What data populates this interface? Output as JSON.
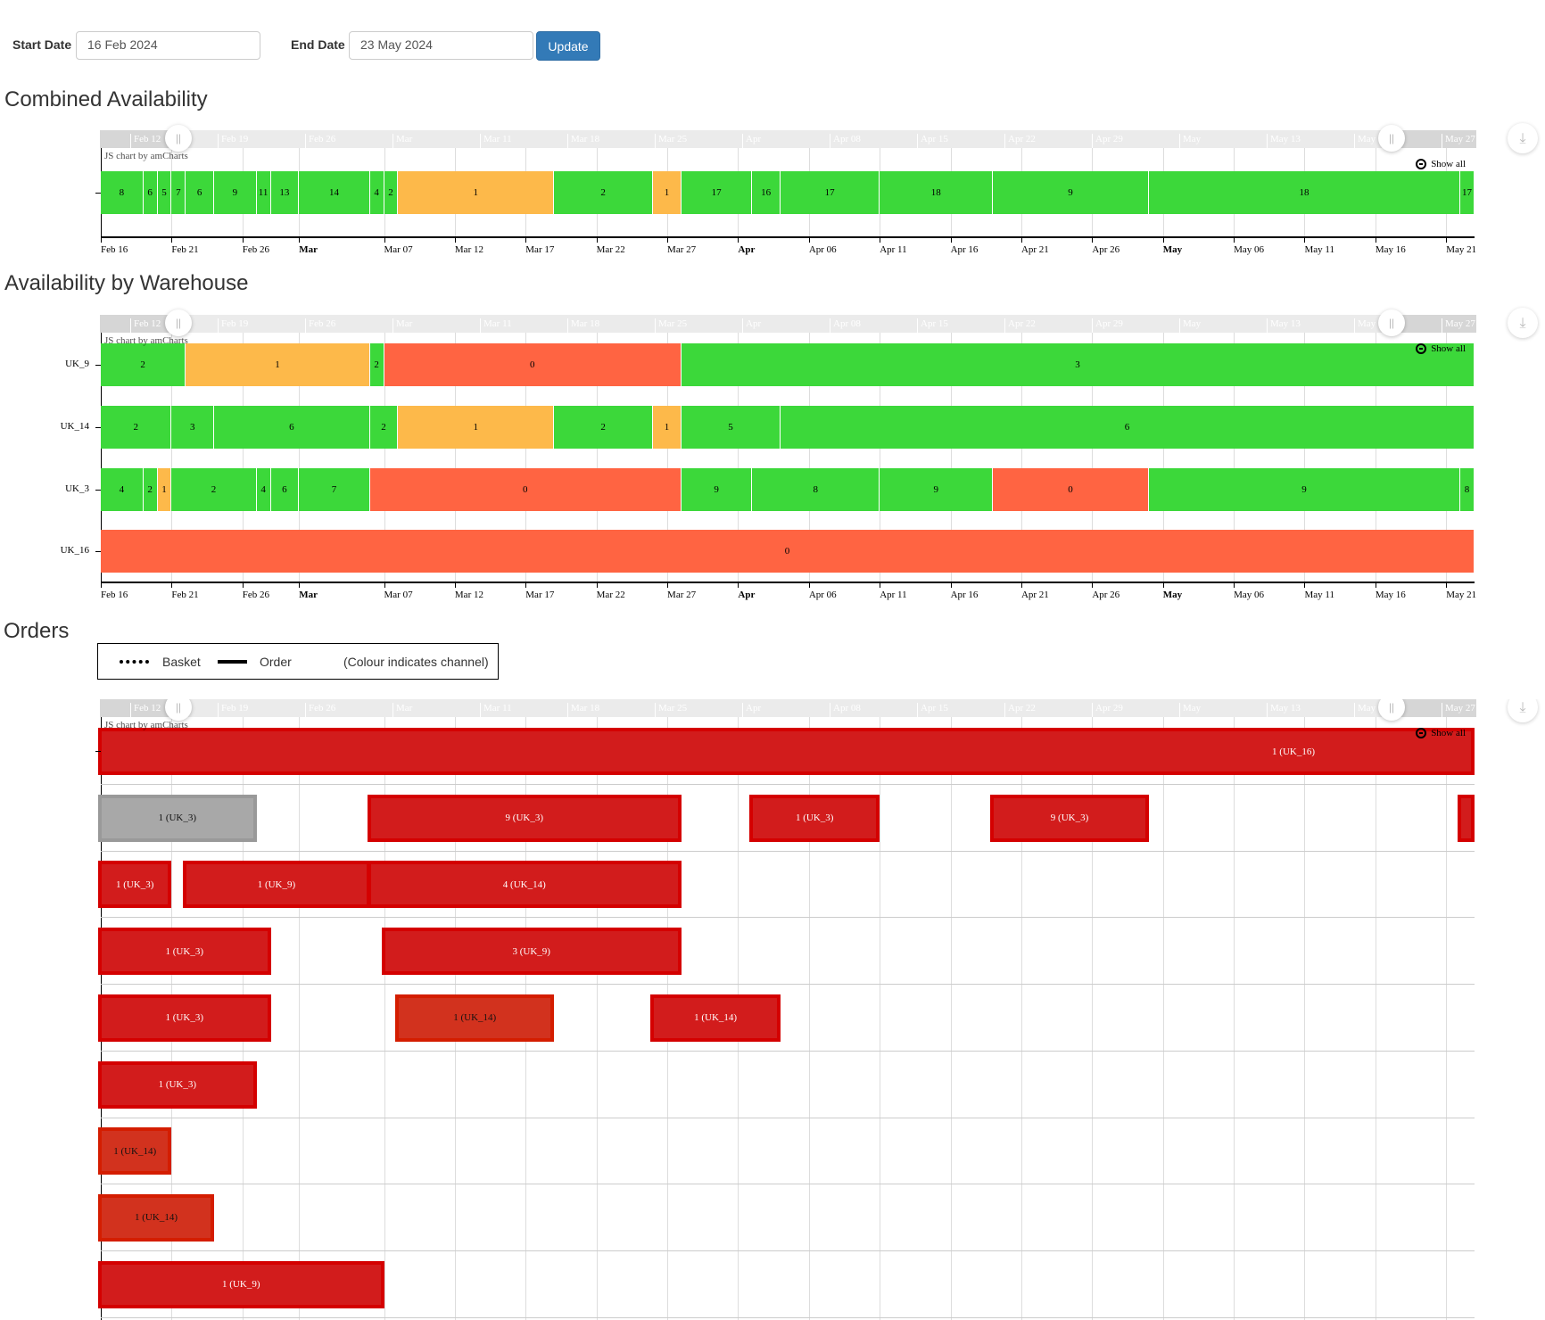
{
  "filters": {
    "start_label": "Start Date",
    "start_value": "16 Feb 2024",
    "end_label": "End Date",
    "end_value": "23 May 2024",
    "update_label": "Update"
  },
  "sections": {
    "combined": "Combined Availability",
    "warehouse": "Availability by Warehouse",
    "orders": "Orders"
  },
  "legend": {
    "basket": "Basket",
    "order": "Order",
    "note": "(Colour indicates channel)"
  },
  "chart_common": {
    "credit": "JS chart by amCharts",
    "show_all": "Show all",
    "download_icon": "download-icon",
    "zoom_out_icon": "zoom-out-icon"
  },
  "scrollbar_labels": [
    "Feb 12",
    "Feb 19",
    "Feb 26",
    "Mar",
    "Mar 11",
    "Mar 18",
    "Mar 25",
    "Apr",
    "Apr 08",
    "Apr 15",
    "Apr 22",
    "Apr 29",
    "May",
    "May 13",
    "May",
    "May 27"
  ],
  "time_axis": {
    "range": [
      "2024-02-16",
      "2024-05-23"
    ],
    "ticks": [
      {
        "date": "2024-02-16",
        "label": "Feb 16"
      },
      {
        "date": "2024-02-21",
        "label": "Feb 21"
      },
      {
        "date": "2024-02-26",
        "label": "Feb 26"
      },
      {
        "date": "2024-03-01",
        "label": "Mar",
        "bold": true
      },
      {
        "date": "2024-03-07",
        "label": "Mar 07"
      },
      {
        "date": "2024-03-12",
        "label": "Mar 12"
      },
      {
        "date": "2024-03-17",
        "label": "Mar 17"
      },
      {
        "date": "2024-03-22",
        "label": "Mar 22"
      },
      {
        "date": "2024-03-27",
        "label": "Mar 27"
      },
      {
        "date": "2024-04-01",
        "label": "Apr",
        "bold": true
      },
      {
        "date": "2024-04-06",
        "label": "Apr 06"
      },
      {
        "date": "2024-04-11",
        "label": "Apr 11"
      },
      {
        "date": "2024-04-16",
        "label": "Apr 16"
      },
      {
        "date": "2024-04-21",
        "label": "Apr 21"
      },
      {
        "date": "2024-04-26",
        "label": "Apr 26"
      },
      {
        "date": "2024-05-01",
        "label": "May",
        "bold": true
      },
      {
        "date": "2024-05-06",
        "label": "May 06"
      },
      {
        "date": "2024-05-11",
        "label": "May 11"
      },
      {
        "date": "2024-05-16",
        "label": "May 16"
      },
      {
        "date": "2024-05-21",
        "label": "May 21"
      }
    ]
  },
  "colors": {
    "high": "#3cd83a",
    "low": "#fdb94a",
    "zero": "#ff6442",
    "order": "#d21c1c",
    "order_uk14": "#d2321e",
    "basket": "#a8a8a8"
  },
  "chart_data": [
    {
      "type": "gantt",
      "title": "Combined Availability",
      "rows": [
        {
          "label": "",
          "segments": [
            [
              "2024-02-16",
              "2024-02-19",
              8
            ],
            [
              "2024-02-19",
              "2024-02-20",
              6
            ],
            [
              "2024-02-20",
              "2024-02-21",
              5
            ],
            [
              "2024-02-21",
              "2024-02-22",
              7
            ],
            [
              "2024-02-22",
              "2024-02-24",
              6
            ],
            [
              "2024-02-24",
              "2024-02-27",
              9
            ],
            [
              "2024-02-27",
              "2024-02-28",
              11
            ],
            [
              "2024-02-28",
              "2024-03-01",
              13
            ],
            [
              "2024-03-01",
              "2024-03-06",
              14
            ],
            [
              "2024-03-06",
              "2024-03-07",
              4
            ],
            [
              "2024-03-07",
              "2024-03-08",
              2
            ],
            [
              "2024-03-08",
              "2024-03-19",
              1
            ],
            [
              "2024-03-19",
              "2024-03-26",
              2
            ],
            [
              "2024-03-26",
              "2024-03-28",
              1
            ],
            [
              "2024-03-28",
              "2024-04-02",
              17
            ],
            [
              "2024-04-02",
              "2024-04-04",
              16
            ],
            [
              "2024-04-04",
              "2024-04-11",
              17
            ],
            [
              "2024-04-11",
              "2024-04-19",
              18
            ],
            [
              "2024-04-19",
              "2024-04-30",
              9
            ],
            [
              "2024-04-30",
              "2024-05-22",
              18
            ],
            [
              "2024-05-22",
              "2024-05-23",
              17
            ]
          ]
        }
      ]
    },
    {
      "type": "gantt",
      "title": "Availability by Warehouse",
      "rows": [
        {
          "label": "UK_9",
          "segments": [
            [
              "2024-02-16",
              "2024-02-22",
              2
            ],
            [
              "2024-02-22",
              "2024-03-06",
              1
            ],
            [
              "2024-03-06",
              "2024-03-07",
              2
            ],
            [
              "2024-03-07",
              "2024-03-28",
              0
            ],
            [
              "2024-03-28",
              "2024-05-23",
              3
            ]
          ]
        },
        {
          "label": "UK_14",
          "segments": [
            [
              "2024-02-16",
              "2024-02-21",
              2
            ],
            [
              "2024-02-21",
              "2024-02-24",
              3
            ],
            [
              "2024-02-24",
              "2024-03-06",
              6
            ],
            [
              "2024-03-06",
              "2024-03-08",
              2
            ],
            [
              "2024-03-08",
              "2024-03-19",
              1
            ],
            [
              "2024-03-19",
              "2024-03-26",
              2
            ],
            [
              "2024-03-26",
              "2024-03-28",
              1
            ],
            [
              "2024-03-28",
              "2024-04-04",
              5
            ],
            [
              "2024-04-04",
              "2024-05-23",
              6
            ]
          ]
        },
        {
          "label": "UK_3",
          "segments": [
            [
              "2024-02-16",
              "2024-02-19",
              4
            ],
            [
              "2024-02-19",
              "2024-02-20",
              2
            ],
            [
              "2024-02-20",
              "2024-02-21",
              1
            ],
            [
              "2024-02-21",
              "2024-02-27",
              2
            ],
            [
              "2024-02-27",
              "2024-02-28",
              4
            ],
            [
              "2024-02-28",
              "2024-03-01",
              6
            ],
            [
              "2024-03-01",
              "2024-03-06",
              7
            ],
            [
              "2024-03-06",
              "2024-03-28",
              0
            ],
            [
              "2024-03-28",
              "2024-04-02",
              9
            ],
            [
              "2024-04-02",
              "2024-04-11",
              8
            ],
            [
              "2024-04-11",
              "2024-04-19",
              9
            ],
            [
              "2024-04-19",
              "2024-04-30",
              0
            ],
            [
              "2024-04-30",
              "2024-05-22",
              9
            ],
            [
              "2024-05-22",
              "2024-05-23",
              8
            ]
          ]
        },
        {
          "label": "UK_16",
          "segments": [
            [
              "2024-02-16",
              "2024-05-23",
              0
            ]
          ]
        }
      ]
    },
    {
      "type": "gantt",
      "title": "Orders",
      "rows": [
        {
          "bars": [
            [
              "2024-02-16",
              "2024-05-23",
              "1 (UK_16)",
              "order"
            ]
          ]
        },
        {
          "bars": [
            [
              "2024-02-16",
              "2024-02-27",
              "1 (UK_3)",
              "basket"
            ],
            [
              "2024-03-06",
              "2024-03-28",
              "9 (UK_3)",
              "order"
            ],
            [
              "2024-04-02",
              "2024-04-11",
              "1 (UK_3)",
              "order"
            ],
            [
              "2024-04-19",
              "2024-04-30",
              "9 (UK_3)",
              "order"
            ],
            [
              "2024-05-22",
              "2024-05-23",
              "",
              "order"
            ]
          ]
        },
        {
          "bars": [
            [
              "2024-02-16",
              "2024-02-21",
              "1 (UK_3)",
              "order"
            ],
            [
              "2024-02-22",
              "2024-03-06",
              "1 (UK_9)",
              "order"
            ],
            [
              "2024-03-06",
              "2024-03-28",
              "4 (UK_14)",
              "order"
            ]
          ]
        },
        {
          "bars": [
            [
              "2024-02-16",
              "2024-02-28",
              "1 (UK_3)",
              "order"
            ],
            [
              "2024-03-07",
              "2024-03-28",
              "3 (UK_9)",
              "order"
            ]
          ]
        },
        {
          "bars": [
            [
              "2024-02-16",
              "2024-02-28",
              "1 (UK_3)",
              "order"
            ],
            [
              "2024-03-08",
              "2024-03-19",
              "1 (UK_14)",
              "order_uk14"
            ],
            [
              "2024-03-26",
              "2024-04-04",
              "1 (UK_14)",
              "order"
            ]
          ]
        },
        {
          "bars": [
            [
              "2024-02-16",
              "2024-02-27",
              "1 (UK_3)",
              "order"
            ]
          ]
        },
        {
          "bars": [
            [
              "2024-02-16",
              "2024-02-21",
              "1 (UK_14)",
              "order_uk14"
            ]
          ]
        },
        {
          "bars": [
            [
              "2024-02-16",
              "2024-02-24",
              "1 (UK_14)",
              "order_uk14"
            ]
          ]
        },
        {
          "bars": [
            [
              "2024-02-16",
              "2024-03-07",
              "1 (UK_9)",
              "order"
            ]
          ]
        }
      ]
    }
  ]
}
